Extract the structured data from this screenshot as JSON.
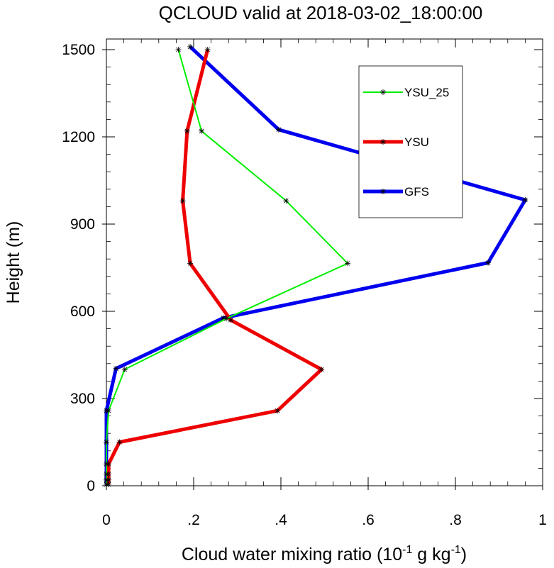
{
  "chart_data": {
    "type": "line",
    "title": "QCLOUD valid at 2018-03-02_18:00:00",
    "xlabel": {
      "base": "Cloud water mixing ratio (10",
      "exp1": "-1",
      "mid": " g kg",
      "exp2": "-1",
      "end": ")"
    },
    "ylabel": "Height (m)",
    "xlim": [
      0,
      1
    ],
    "ylim": [
      0,
      1500
    ],
    "xticks": [
      0,
      0.2,
      0.4,
      0.6,
      0.8,
      1
    ],
    "xtick_labels": [
      "0",
      ".2",
      ".4",
      ".6",
      ".8",
      "1"
    ],
    "yticks": [
      0,
      300,
      600,
      900,
      1200,
      1500
    ],
    "ytick_labels": [
      "0",
      "300",
      "600",
      "900",
      "1200",
      "1500"
    ],
    "legend_position": "top-right",
    "series": [
      {
        "name": "YSU_25",
        "color": "#00ee00",
        "linewidth": "thin",
        "points": [
          {
            "x": 0.0,
            "y": 5
          },
          {
            "x": 0.0,
            "y": 20
          },
          {
            "x": 0.0,
            "y": 40
          },
          {
            "x": 0.0,
            "y": 75
          },
          {
            "x": 0.0,
            "y": 150
          },
          {
            "x": 0.005,
            "y": 258
          },
          {
            "x": 0.042,
            "y": 400
          },
          {
            "x": 0.275,
            "y": 575
          },
          {
            "x": 0.553,
            "y": 765
          },
          {
            "x": 0.412,
            "y": 980
          },
          {
            "x": 0.218,
            "y": 1220
          },
          {
            "x": 0.165,
            "y": 1500
          }
        ]
      },
      {
        "name": "YSU",
        "color": "#ee0000",
        "linewidth": "thick",
        "points": [
          {
            "x": 0.005,
            "y": 5
          },
          {
            "x": 0.005,
            "y": 20
          },
          {
            "x": 0.005,
            "y": 40
          },
          {
            "x": 0.005,
            "y": 75
          },
          {
            "x": 0.03,
            "y": 150
          },
          {
            "x": 0.392,
            "y": 258
          },
          {
            "x": 0.493,
            "y": 400
          },
          {
            "x": 0.285,
            "y": 570
          },
          {
            "x": 0.192,
            "y": 765
          },
          {
            "x": 0.175,
            "y": 980
          },
          {
            "x": 0.185,
            "y": 1220
          },
          {
            "x": 0.232,
            "y": 1500
          }
        ]
      },
      {
        "name": "GFS",
        "color": "#0000ee",
        "linewidth": "thick",
        "points": [
          {
            "x": 0.0,
            "y": 5
          },
          {
            "x": 0.0,
            "y": 20
          },
          {
            "x": 0.0,
            "y": 40
          },
          {
            "x": 0.0,
            "y": 75
          },
          {
            "x": 0.0,
            "y": 150
          },
          {
            "x": 0.0,
            "y": 258
          },
          {
            "x": 0.022,
            "y": 403
          },
          {
            "x": 0.268,
            "y": 577
          },
          {
            "x": 0.875,
            "y": 767
          },
          {
            "x": 0.96,
            "y": 983
          },
          {
            "x": 0.395,
            "y": 1225
          },
          {
            "x": 0.192,
            "y": 1510
          }
        ]
      }
    ]
  }
}
